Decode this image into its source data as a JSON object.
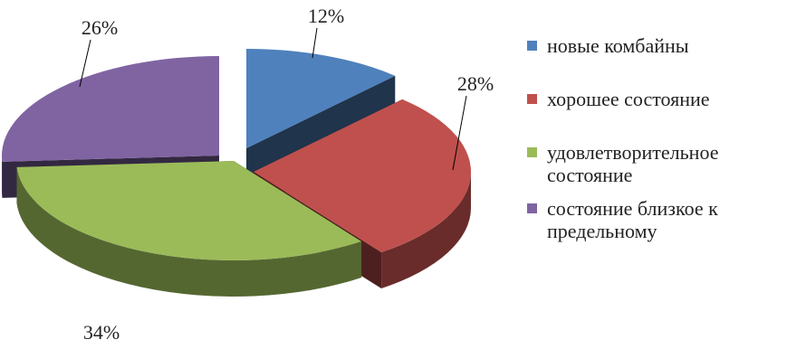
{
  "chart_data": {
    "type": "pie",
    "title": "",
    "slices": [
      {
        "label": "новые комбайны",
        "value": 12,
        "display": "12%",
        "color": "#4F81BD"
      },
      {
        "label": "хорошее состояние",
        "value": 28,
        "display": "28%",
        "color": "#C0504D"
      },
      {
        "label": "удовлетворительное состояние",
        "value": 34,
        "display": "34%",
        "color": "#9BBB59"
      },
      {
        "label": "состояние близкое к предельному",
        "value": 26,
        "display": "26%",
        "color": "#8064A2"
      }
    ],
    "style": "3d-exploded",
    "legend_position": "right"
  }
}
